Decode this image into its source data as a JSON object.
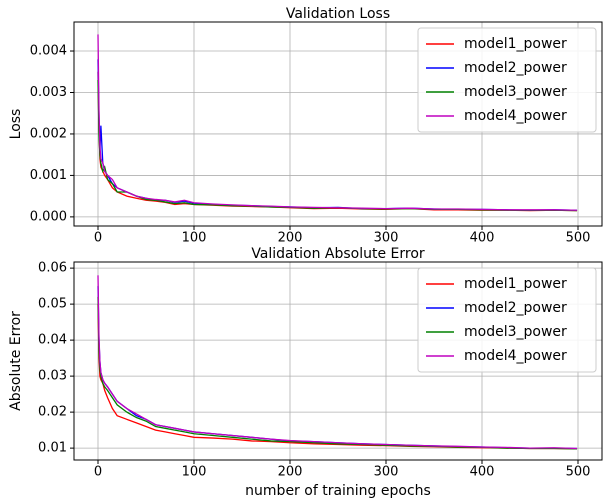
{
  "chart_data": [
    {
      "type": "line",
      "title": "Validation Loss",
      "ylabel": "Loss",
      "x": [
        0,
        1,
        2,
        3,
        5,
        7,
        10,
        15,
        20,
        30,
        40,
        50,
        60,
        70,
        80,
        90,
        100,
        120,
        140,
        160,
        180,
        200,
        225,
        250,
        275,
        300,
        325,
        350,
        375,
        400,
        425,
        450,
        475,
        499
      ],
      "xlim": [
        -25,
        525
      ],
      "xticks": [
        0,
        100,
        200,
        300,
        400,
        500
      ],
      "ylim": [
        -0.00022,
        0.0047
      ],
      "yticks": [
        {
          "value": 0,
          "label": "0.000"
        },
        {
          "value": 0.001,
          "label": "0.001"
        },
        {
          "value": 0.002,
          "label": "0.002"
        },
        {
          "value": 0.003,
          "label": "0.003"
        },
        {
          "value": 0.004,
          "label": "0.004"
        }
      ],
      "grid": true,
      "legend": "upper right",
      "series": [
        {
          "name": "model1_power",
          "color": "#ff0000",
          "values": [
            0.0035,
            0.0021,
            0.0014,
            0.0012,
            0.0011,
            0.001,
            0.0009,
            0.0007,
            0.0006,
            0.0005,
            0.00045,
            0.0004,
            0.00038,
            0.00035,
            0.0003,
            0.00032,
            0.0003,
            0.00028,
            0.00026,
            0.00025,
            0.00024,
            0.00022,
            0.0002,
            0.00021,
            0.00019,
            0.00018,
            0.0002,
            0.00017,
            0.00017,
            0.00016,
            0.00016,
            0.00015,
            0.00016,
            0.00015
          ]
        },
        {
          "name": "model2_power",
          "color": "#0000ff",
          "values": [
            0.0038,
            0.0024,
            0.0016,
            0.0022,
            0.0013,
            0.0011,
            0.001,
            0.0008,
            0.0007,
            0.0006,
            0.0005,
            0.00045,
            0.0004,
            0.0004,
            0.00035,
            0.00038,
            0.00033,
            0.0003,
            0.00028,
            0.00027,
            0.00025,
            0.00024,
            0.00022,
            0.00023,
            0.0002,
            0.0002,
            0.00021,
            0.00019,
            0.00018,
            0.00018,
            0.00017,
            0.00016,
            0.00017,
            0.00016
          ]
        },
        {
          "name": "model3_power",
          "color": "#008000",
          "values": [
            0.0033,
            0.002,
            0.0015,
            0.0013,
            0.0011,
            0.0012,
            0.0009,
            0.0008,
            0.0006,
            0.0006,
            0.0005,
            0.00042,
            0.0004,
            0.00036,
            0.00032,
            0.00034,
            0.0003,
            0.00029,
            0.00027,
            0.00026,
            0.00024,
            0.00023,
            0.00021,
            0.00022,
            0.0002,
            0.00019,
            0.0002,
            0.00018,
            0.00018,
            0.00017,
            0.00016,
            0.00016,
            0.00016,
            0.00015
          ]
        },
        {
          "name": "model4_power",
          "color": "#bf00bf",
          "values": [
            0.0044,
            0.0026,
            0.0017,
            0.0014,
            0.0013,
            0.0011,
            0.001,
            0.0009,
            0.0007,
            0.0006,
            0.0005,
            0.00045,
            0.00042,
            0.0004,
            0.00036,
            0.0004,
            0.00034,
            0.00031,
            0.00029,
            0.00027,
            0.00026,
            0.00024,
            0.00023,
            0.00022,
            0.00021,
            0.0002,
            0.00021,
            0.00019,
            0.00019,
            0.00018,
            0.00017,
            0.00017,
            0.00017,
            0.00016
          ]
        }
      ]
    },
    {
      "type": "line",
      "title": "Validation Absolute Error",
      "ylabel": "Absolute Error",
      "xlabel": "number of training epochs",
      "x": [
        0,
        1,
        2,
        3,
        5,
        7,
        10,
        15,
        20,
        30,
        40,
        50,
        60,
        70,
        80,
        90,
        100,
        120,
        140,
        160,
        180,
        200,
        225,
        250,
        275,
        300,
        325,
        350,
        375,
        400,
        425,
        450,
        475,
        499
      ],
      "xlim": [
        -25,
        525
      ],
      "xticks": [
        0,
        100,
        200,
        300,
        400,
        500
      ],
      "ylim": [
        0.0067,
        0.0617
      ],
      "yticks": [
        0.01,
        0.02,
        0.03,
        0.04,
        0.05,
        0.06
      ],
      "grid": true,
      "legend": "upper right",
      "series": [
        {
          "name": "model1_power",
          "color": "#ff0000",
          "values": [
            0.05,
            0.035,
            0.03,
            0.029,
            0.028,
            0.026,
            0.024,
            0.021,
            0.019,
            0.018,
            0.017,
            0.016,
            0.015,
            0.0145,
            0.014,
            0.0135,
            0.013,
            0.0128,
            0.0125,
            0.012,
            0.0118,
            0.0115,
            0.0112,
            0.011,
            0.0108,
            0.0107,
            0.0105,
            0.0104,
            0.0102,
            0.0101,
            0.01,
            0.0099,
            0.0099,
            0.0098
          ]
        },
        {
          "name": "model2_power",
          "color": "#0000ff",
          "values": [
            0.055,
            0.04,
            0.034,
            0.031,
            0.029,
            0.028,
            0.027,
            0.025,
            0.023,
            0.021,
            0.019,
            0.018,
            0.0165,
            0.016,
            0.0155,
            0.015,
            0.0145,
            0.014,
            0.0135,
            0.013,
            0.0125,
            0.012,
            0.0118,
            0.0115,
            0.0112,
            0.011,
            0.0108,
            0.0106,
            0.0104,
            0.0103,
            0.0101,
            0.01,
            0.01,
            0.0099
          ]
        },
        {
          "name": "model3_power",
          "color": "#008000",
          "values": [
            0.052,
            0.037,
            0.032,
            0.03,
            0.028,
            0.027,
            0.026,
            0.024,
            0.022,
            0.02,
            0.0185,
            0.0175,
            0.016,
            0.0155,
            0.015,
            0.0145,
            0.014,
            0.0135,
            0.013,
            0.0125,
            0.012,
            0.0118,
            0.0115,
            0.0112,
            0.011,
            0.0108,
            0.0106,
            0.0105,
            0.0103,
            0.0102,
            0.01,
            0.0099,
            0.0099,
            0.0098
          ]
        },
        {
          "name": "model4_power",
          "color": "#bf00bf",
          "values": [
            0.058,
            0.041,
            0.034,
            0.031,
            0.029,
            0.028,
            0.027,
            0.025,
            0.023,
            0.021,
            0.0195,
            0.018,
            0.0165,
            0.016,
            0.0155,
            0.015,
            0.0145,
            0.014,
            0.0135,
            0.013,
            0.0125,
            0.0121,
            0.0118,
            0.0115,
            0.0112,
            0.011,
            0.0108,
            0.0106,
            0.0105,
            0.0103,
            0.0102,
            0.01,
            0.0101,
            0.0099
          ]
        }
      ]
    }
  ]
}
